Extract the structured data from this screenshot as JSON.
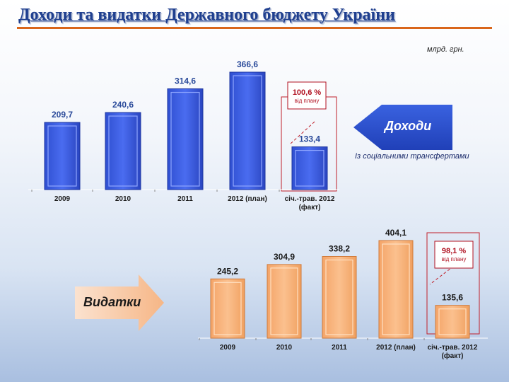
{
  "title": "Доходи та видатки Державного бюджету України",
  "unit": "млрд. грн.",
  "income": {
    "arrow_label": "Доходи",
    "note": "Із соціальними трансфертами",
    "plan_percent": "100,6 %",
    "plan_text": "від плану"
  },
  "expenses": {
    "arrow_label": "Видатки",
    "plan_percent": "98,1 %",
    "plan_text": "від плану"
  },
  "colors": {
    "title": "#1f3f8f",
    "income_bar": "#3b5bdc",
    "income_label": "#2a4a9a",
    "expense_bar": "#f9b27a",
    "accent_line": "#d9661a",
    "callout_border": "#c0202a",
    "callout_text": "#b01020"
  },
  "chart_data": [
    {
      "type": "bar",
      "name": "Доходи",
      "categories": [
        "2009",
        "2010",
        "2011",
        "2012 (план)",
        "січ.-трав. 2012\n(факт)"
      ],
      "values": [
        209.7,
        240.6,
        314.6,
        366.6,
        133.4
      ],
      "value_labels": [
        "209,7",
        "240,6",
        "314,6",
        "366,6",
        "133,4"
      ]
    },
    {
      "type": "bar",
      "name": "Видатки",
      "categories": [
        "2009",
        "2010",
        "2011",
        "2012 (план)",
        "січ.-трав. 2012\n(факт)"
      ],
      "values": [
        245.2,
        304.9,
        338.2,
        404.1,
        135.6
      ],
      "value_labels": [
        "245,2",
        "304,9",
        "338,2",
        "404,1",
        "135,6"
      ]
    }
  ]
}
